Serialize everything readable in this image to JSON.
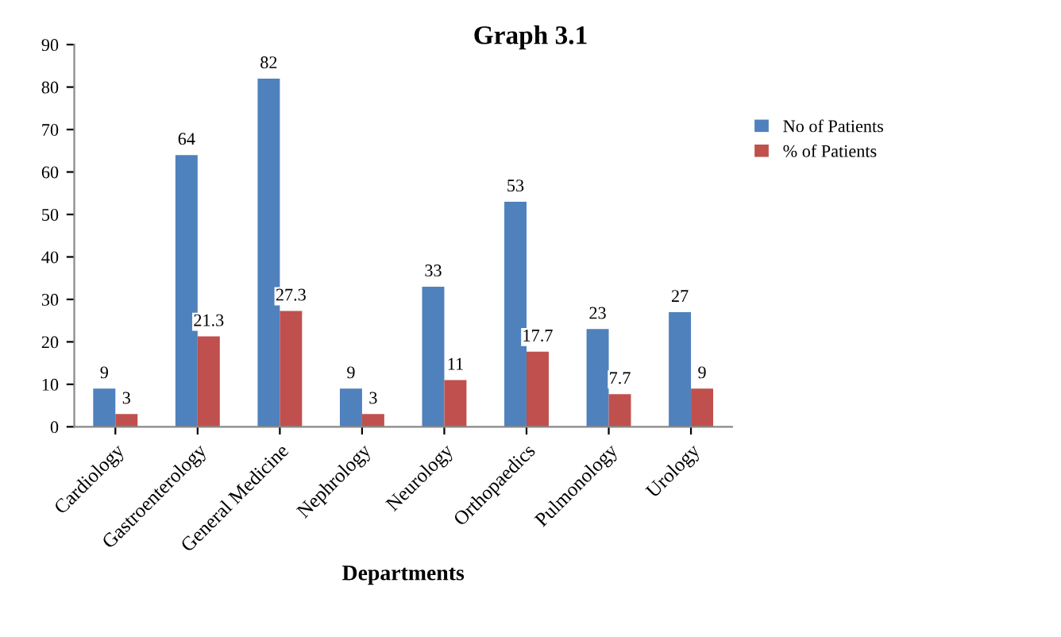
{
  "chart_data": {
    "type": "bar",
    "title": "Graph 3.1",
    "xlabel": "Departments",
    "categories": [
      "Cardiology",
      "Gastroenterology",
      "General Medicine",
      "Nephrology",
      "Neurology",
      "Orthopaedics",
      "Pulmonology",
      "Urology"
    ],
    "series": [
      {
        "name": "No of Patients",
        "color": "#4f81bd",
        "values": [
          9,
          64,
          82,
          9,
          33,
          53,
          23,
          27
        ]
      },
      {
        "name": "% of Patients",
        "color": "#c0504d",
        "values": [
          3,
          21.3,
          27.3,
          3,
          11,
          17.7,
          7.7,
          9
        ]
      }
    ],
    "ylim": [
      0,
      90
    ],
    "yticks": [
      0,
      10,
      20,
      30,
      40,
      50,
      60,
      70,
      80,
      90
    ],
    "grid": false,
    "legend": "right",
    "data_labels": true
  }
}
